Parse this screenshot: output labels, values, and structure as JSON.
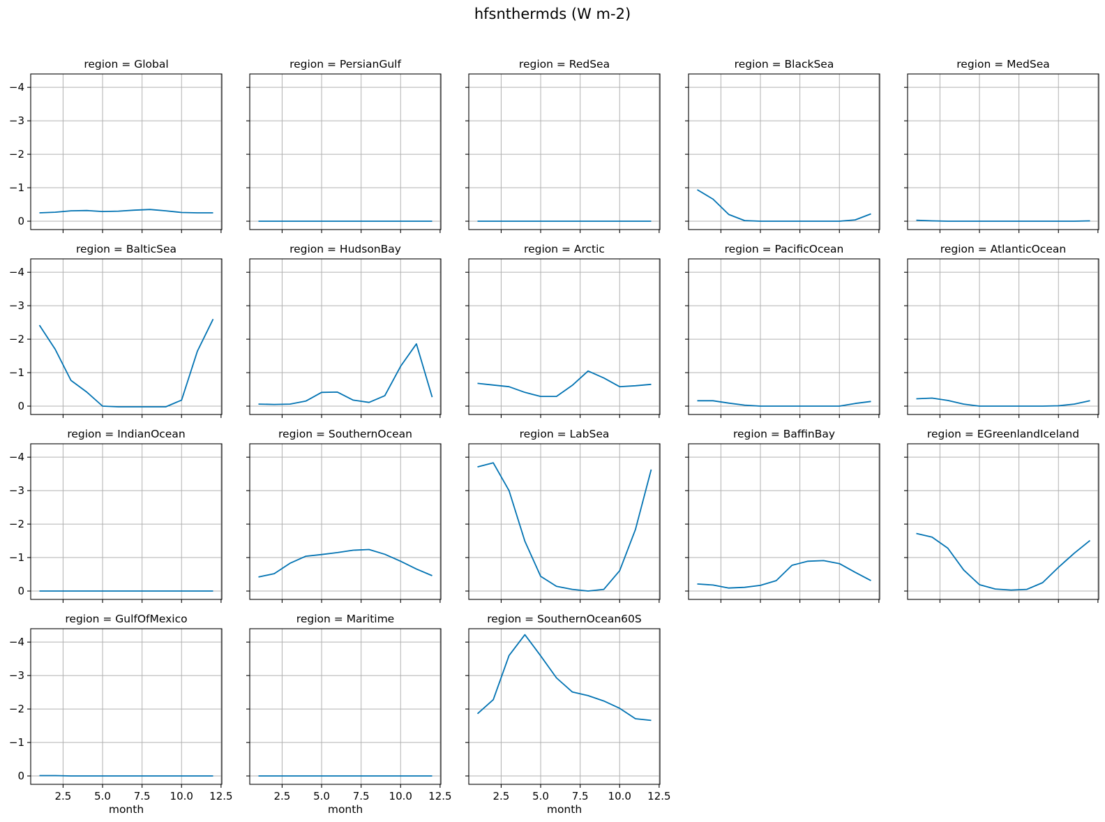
{
  "chart_data": {
    "type": "line",
    "title": "hfsnthermds (W m-2)",
    "xlabel": "month",
    "ylabel": "",
    "xlim": [
      0.45,
      12.55
    ],
    "ylim": [
      0.25,
      -4.4
    ],
    "y_inverted": true,
    "grid": true,
    "xticks": [
      2.5,
      5.0,
      7.5,
      10.0,
      12.5
    ],
    "xtick_labels": [
      "2.5",
      "5.0",
      "7.5",
      "10.0",
      "12.5"
    ],
    "yticks": [
      0,
      -1,
      -2,
      -3,
      -4
    ],
    "ytick_labels": [
      "0",
      "−1",
      "−2",
      "−3",
      "−4"
    ],
    "x": [
      1,
      2,
      3,
      4,
      5,
      6,
      7,
      8,
      9,
      10,
      11,
      12
    ],
    "panels": [
      {
        "title": "region = Global",
        "values": [
          -0.25,
          -0.27,
          -0.31,
          -0.32,
          -0.29,
          -0.3,
          -0.33,
          -0.35,
          -0.31,
          -0.26,
          -0.25,
          -0.25
        ]
      },
      {
        "title": "region = PersianGulf",
        "values": [
          0,
          0,
          0,
          0,
          0,
          0,
          0,
          0,
          0,
          0,
          0,
          0
        ]
      },
      {
        "title": "region = RedSea",
        "values": [
          0,
          0,
          0,
          0,
          0,
          0,
          0,
          0,
          0,
          0,
          0,
          0
        ]
      },
      {
        "title": "region = BlackSea",
        "values": [
          -0.94,
          -0.66,
          -0.2,
          -0.02,
          0,
          0,
          0,
          0,
          0,
          0,
          -0.04,
          -0.22
        ]
      },
      {
        "title": "region = MedSea",
        "values": [
          -0.03,
          -0.01,
          0,
          0,
          0,
          0,
          0,
          0,
          0,
          0,
          0,
          -0.01
        ]
      },
      {
        "title": "region = BalticSea",
        "values": [
          -2.42,
          -1.7,
          -0.77,
          -0.42,
          0,
          0.02,
          0.02,
          0.02,
          0.02,
          -0.18,
          -1.64,
          -2.6
        ]
      },
      {
        "title": "region = HudsonBay",
        "values": [
          -0.06,
          -0.05,
          -0.06,
          -0.15,
          -0.41,
          -0.42,
          -0.18,
          -0.11,
          -0.31,
          -1.19,
          -1.86,
          -0.27
        ]
      },
      {
        "title": "region = Arctic",
        "values": [
          -0.68,
          -0.63,
          -0.58,
          -0.41,
          -0.29,
          -0.29,
          -0.62,
          -1.05,
          -0.84,
          -0.58,
          -0.61,
          -0.65
        ]
      },
      {
        "title": "region = PacificOcean",
        "values": [
          -0.16,
          -0.16,
          -0.09,
          -0.03,
          0,
          0,
          0,
          0,
          0,
          0,
          -0.08,
          -0.14
        ]
      },
      {
        "title": "region = AtlanticOcean",
        "values": [
          -0.22,
          -0.24,
          -0.17,
          -0.06,
          0,
          0,
          0,
          0,
          0,
          -0.01,
          -0.06,
          -0.16
        ]
      },
      {
        "title": "region = IndianOcean",
        "values": [
          0,
          0,
          0,
          0,
          0,
          0,
          0,
          0,
          0,
          0,
          0,
          0
        ]
      },
      {
        "title": "region = SouthernOcean",
        "values": [
          -0.42,
          -0.52,
          -0.83,
          -1.04,
          -1.09,
          -1.15,
          -1.22,
          -1.24,
          -1.1,
          -0.89,
          -0.66,
          -0.46
        ]
      },
      {
        "title": "region = LabSea",
        "values": [
          -3.71,
          -3.83,
          -3.0,
          -1.49,
          -0.44,
          -0.14,
          -0.05,
          0,
          -0.05,
          -0.61,
          -1.84,
          -3.63
        ]
      },
      {
        "title": "region = BaffinBay",
        "values": [
          -0.21,
          -0.18,
          -0.09,
          -0.11,
          -0.17,
          -0.31,
          -0.77,
          -0.89,
          -0.91,
          -0.82,
          -0.56,
          -0.31
        ]
      },
      {
        "title": "region = EGreenlandIceland",
        "values": [
          -1.72,
          -1.61,
          -1.28,
          -0.63,
          -0.19,
          -0.06,
          -0.03,
          -0.05,
          -0.25,
          -0.71,
          -1.13,
          -1.51
        ]
      },
      {
        "title": "region = GulfOfMexico",
        "values": [
          -0.01,
          -0.01,
          0,
          0,
          0,
          0,
          0,
          0,
          0,
          0,
          0,
          0
        ]
      },
      {
        "title": "region = Maritime",
        "values": [
          0,
          0,
          0,
          0,
          0,
          0,
          0,
          0,
          0,
          0,
          0,
          0
        ]
      },
      {
        "title": "region = SouthernOcean60S",
        "values": [
          -1.86,
          -2.28,
          -3.6,
          -4.22,
          -3.59,
          -2.93,
          -2.51,
          -2.4,
          -2.24,
          -2.02,
          -1.71,
          -1.66
        ]
      }
    ]
  }
}
